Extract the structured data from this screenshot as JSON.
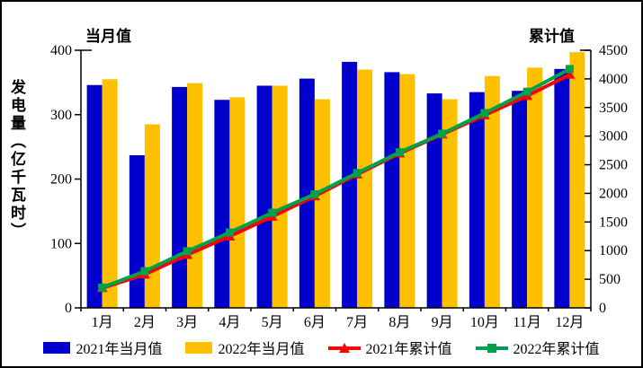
{
  "frame": {
    "background": "#FFFFFF",
    "border_color": "#000000"
  },
  "colors": {
    "axis": "#000000",
    "text": "#000000",
    "bar_2021": "#0000CC",
    "bar_2022": "#FFC000",
    "line_2021": "#FF0000",
    "line_2022": "#00A14B"
  },
  "chart_data": {
    "type": "combo-bar-line",
    "title": "",
    "ylabel": "发电量（亿千瓦时）",
    "grid": false,
    "legend_position": "bottom",
    "categories": [
      "1月",
      "2月",
      "3月",
      "4月",
      "5月",
      "6月",
      "7月",
      "8月",
      "9月",
      "10月",
      "11月",
      "12月"
    ],
    "left_axis": {
      "title": "当月值",
      "min": 0,
      "max": 400,
      "ticks": [
        0,
        100,
        200,
        300,
        400
      ]
    },
    "right_axis": {
      "title": "累计值",
      "min": 0,
      "max": 4500,
      "ticks": [
        0,
        500,
        1000,
        1500,
        2000,
        2500,
        3000,
        3500,
        4000,
        4500
      ]
    },
    "series": [
      {
        "id": "bar2021",
        "name": "2021年当月值",
        "type": "bar",
        "axis": "left",
        "color": "#0000CC",
        "values": [
          346,
          237,
          343,
          323,
          345,
          356,
          382,
          366,
          333,
          335,
          337,
          371
        ]
      },
      {
        "id": "bar2022",
        "name": "2022年当月值",
        "type": "bar",
        "axis": "left",
        "color": "#FFC000",
        "values": [
          355,
          285,
          349,
          327,
          345,
          324,
          370,
          363,
          324,
          360,
          373,
          397
        ]
      },
      {
        "id": "line2021",
        "name": "2021年累计值",
        "type": "line",
        "axis": "right",
        "color": "#FF0000",
        "marker": "triangle",
        "values": [
          346,
          583,
          926,
          1249,
          1594,
          1950,
          2332,
          2698,
          3031,
          3366,
          3703,
          4074
        ]
      },
      {
        "id": "line2022",
        "name": "2022年累计值",
        "type": "line",
        "axis": "right",
        "color": "#00A14B",
        "marker": "square",
        "values": [
          355,
          640,
          989,
          1316,
          1661,
          1985,
          2355,
          2718,
          3042,
          3402,
          3775,
          4172
        ]
      }
    ]
  }
}
